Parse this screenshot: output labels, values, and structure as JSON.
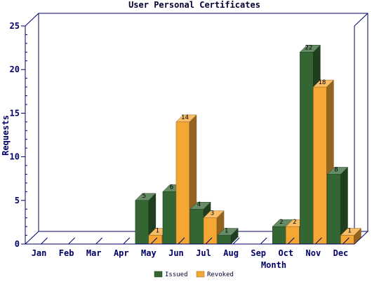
{
  "chart_data": {
    "type": "bar",
    "title": "User Personal Certificates",
    "xlabel": "Month",
    "ylabel": "Requests",
    "categories": [
      "Jan",
      "Feb",
      "Mar",
      "Apr",
      "May",
      "Jun",
      "Jul",
      "Aug",
      "Sep",
      "Oct",
      "Nov",
      "Dec"
    ],
    "series": [
      {
        "name": "Issued",
        "values": [
          0,
          0,
          0,
          0,
          5,
          6,
          4,
          1,
          0,
          2,
          22,
          8
        ],
        "color": "#336633"
      },
      {
        "name": "Revoked",
        "values": [
          0,
          0,
          0,
          0,
          1,
          14,
          3,
          0,
          0,
          2,
          18,
          1
        ],
        "color": "#f5a734"
      }
    ],
    "ylim": [
      0,
      25
    ],
    "yticks": [
      0,
      5,
      10,
      15,
      20,
      25
    ],
    "chart_style": "3d",
    "legend_position": "bottom"
  }
}
